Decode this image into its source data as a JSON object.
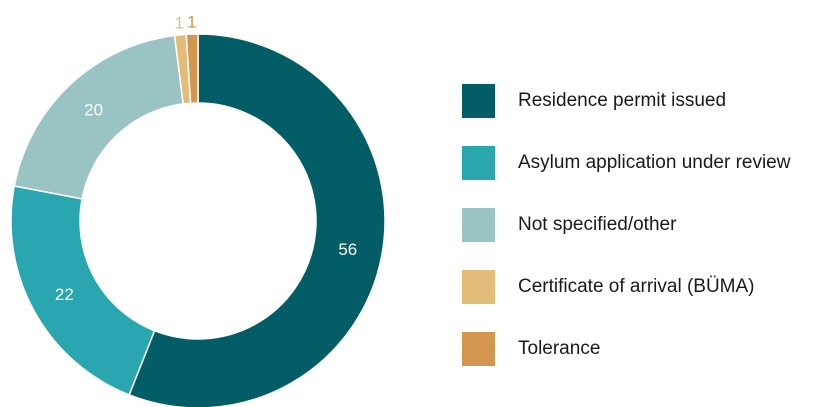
{
  "chart_data": {
    "type": "pie",
    "subtype": "donut",
    "legend_position": "right",
    "series": [
      {
        "name": "Residence permit issued",
        "value": 56,
        "color": "#035d66"
      },
      {
        "name": "Asylum application under review",
        "value": 22,
        "color": "#2aa6b0"
      },
      {
        "name": "Not specified/other",
        "value": 20,
        "color": "#9ac4c4"
      },
      {
        "name": "Certificate of arrival (BÜMA)",
        "value": 1,
        "color": "#e2bc78"
      },
      {
        "name": "Tolerance",
        "value": 1,
        "color": "#d2964e"
      }
    ]
  }
}
